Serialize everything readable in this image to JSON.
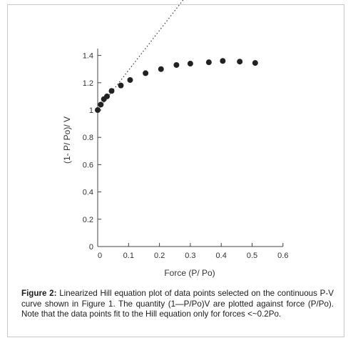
{
  "chart_data": {
    "type": "scatter",
    "xlabel": "Force (P/ Po)",
    "ylabel": "(1- P/ Po)/ V",
    "xlim": [
      0,
      0.6
    ],
    "ylim": [
      0,
      1.5
    ],
    "xticks": [
      0,
      0.1,
      0.2,
      0.3,
      0.4,
      0.5,
      0.6
    ],
    "xtick_labels": [
      "0",
      "0.1",
      "0.2",
      "0.3",
      "0.4",
      "0.5",
      "0.6"
    ],
    "yticks": [
      0,
      0.2,
      0.4,
      0.6,
      0.8,
      1,
      1.2,
      1.4
    ],
    "ytick_labels": [
      "0",
      "0.2",
      "0.4",
      "0.6",
      "0.8",
      "1",
      "1.2",
      "1.4"
    ],
    "grid": false,
    "series": [
      {
        "points": [
          [
            0.0,
            1.0
          ],
          [
            0.01,
            1.04
          ],
          [
            0.02,
            1.08
          ],
          [
            0.03,
            1.1
          ],
          [
            0.045,
            1.14
          ],
          [
            0.075,
            1.18
          ],
          [
            0.105,
            1.22
          ],
          [
            0.155,
            1.27
          ],
          [
            0.205,
            1.3
          ],
          [
            0.255,
            1.33
          ],
          [
            0.3,
            1.34
          ],
          [
            0.36,
            1.35
          ],
          [
            0.405,
            1.36
          ],
          [
            0.46,
            1.355
          ],
          [
            0.51,
            1.345
          ]
        ]
      }
    ],
    "fit_line": {
      "style": "dotted",
      "x0": 0.0,
      "y0": 1.0,
      "x1": 0.295,
      "y1": 1.86
    }
  },
  "caption": {
    "label": "Figure 2:",
    "text": " Linearized Hill equation plot of data points selected on the continuous P-V curve shown in Figure 1. The quantity (1—P/Po)V are plotted against force (P/Po). Note that the data points fit to the Hill equation only for forces <~0.2Po."
  }
}
